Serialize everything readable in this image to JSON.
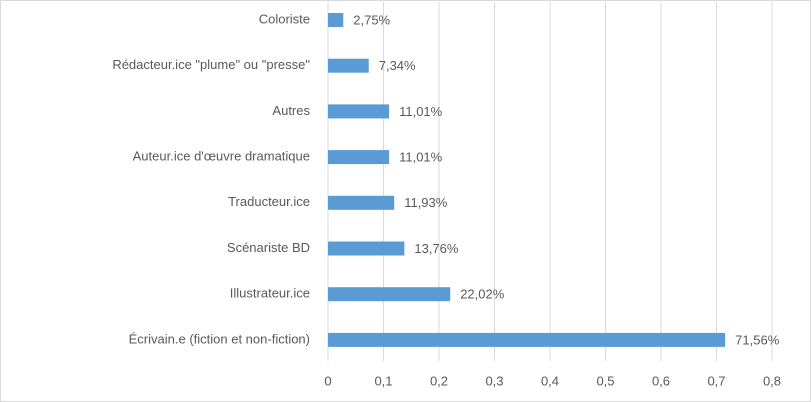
{
  "chart_data": {
    "type": "barh",
    "categories": [
      "Coloriste",
      "Rédacteur.ice \"plume\" ou \"presse\"",
      "Autres",
      "Auteur.ice d'œuvre dramatique",
      "Traducteur.ice",
      "Scénariste BD",
      "Illustrateur.ice",
      "Écrivain.e (fiction et non-fiction)"
    ],
    "values": [
      0.0275,
      0.0734,
      0.1101,
      0.1101,
      0.1193,
      0.1376,
      0.2202,
      0.7156
    ],
    "value_labels": [
      "2,75%",
      "7,34%",
      "11,01%",
      "11,01%",
      "11,93%",
      "13,76%",
      "22,02%",
      "71,56%"
    ],
    "color": "#5b9bd5",
    "xlim": [
      0,
      0.8
    ],
    "xticks": [
      0,
      {
        "value": 0.1,
        "label": "0,1"
      },
      {
        "value": 0.2,
        "label": "0,2"
      },
      {
        "value": 0.3,
        "label": "0,3"
      },
      {
        "value": 0.4,
        "label": "0,4"
      },
      {
        "value": 0.5,
        "label": "0,5"
      },
      {
        "value": 0.6,
        "label": "0,6"
      },
      {
        "value": 0.7,
        "label": "0,7"
      },
      {
        "value": 0.8,
        "label": "0,8"
      }
    ],
    "grid": true
  }
}
